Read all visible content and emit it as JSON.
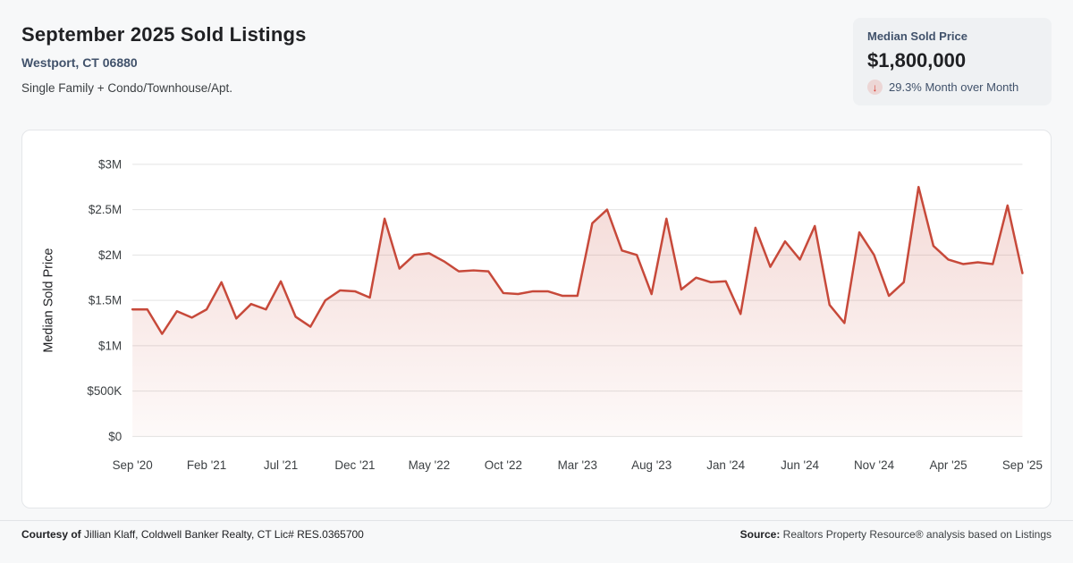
{
  "header": {
    "title": "September 2025 Sold Listings",
    "location": "Westport, CT 06880",
    "subtitle": "Single Family + Condo/Townhouse/Apt."
  },
  "stats": {
    "label": "Median Sold Price",
    "value": "$1,800,000",
    "change_icon": "arrow-down",
    "change_glyph": "↓",
    "change_text": "29.3% Month over Month",
    "change_color": "#d93025"
  },
  "chart_data": {
    "type": "area",
    "title": "September 2025 Sold Listings - Median Sold Price",
    "ylabel": "Median Sold Price",
    "ylim": [
      0,
      3000000
    ],
    "yticks": [
      0,
      500000,
      1000000,
      1500000,
      2000000,
      2500000,
      3000000
    ],
    "ytick_labels": [
      "$0",
      "$500K",
      "$1M",
      "$1.5M",
      "$2M",
      "$2.5M",
      "$3M"
    ],
    "xtick_every": 5,
    "xtick_labels": [
      "Sep '20",
      "Feb '21",
      "Jul '21",
      "Dec '21",
      "May '22",
      "Oct '22",
      "Mar '23",
      "Aug '23",
      "Jan '24",
      "Jun '24",
      "Nov '24",
      "Apr '25",
      "Sep '25"
    ],
    "x": [
      "Sep '20",
      "Oct '20",
      "Nov '20",
      "Dec '20",
      "Jan '21",
      "Feb '21",
      "Mar '21",
      "Apr '21",
      "May '21",
      "Jun '21",
      "Jul '21",
      "Aug '21",
      "Sep '21",
      "Oct '21",
      "Nov '21",
      "Dec '21",
      "Jan '22",
      "Feb '22",
      "Mar '22",
      "Apr '22",
      "May '22",
      "Jun '22",
      "Jul '22",
      "Aug '22",
      "Sep '22",
      "Oct '22",
      "Nov '22",
      "Dec '22",
      "Jan '23",
      "Feb '23",
      "Mar '23",
      "Apr '23",
      "May '23",
      "Jun '23",
      "Jul '23",
      "Aug '23",
      "Sep '23",
      "Oct '23",
      "Nov '23",
      "Dec '23",
      "Jan '24",
      "Feb '24",
      "Mar '24",
      "Apr '24",
      "May '24",
      "Jun '24",
      "Jul '24",
      "Aug '24",
      "Sep '24",
      "Oct '24",
      "Nov '24",
      "Dec '24",
      "Jan '25",
      "Feb '25",
      "Mar '25",
      "Apr '25",
      "May '25",
      "Jun '25",
      "Jul '25",
      "Aug '25",
      "Sep '25"
    ],
    "series": [
      {
        "name": "Median Sold Price",
        "values": [
          1400000,
          1400000,
          1130000,
          1380000,
          1310000,
          1400000,
          1700000,
          1300000,
          1460000,
          1400000,
          1710000,
          1320000,
          1210000,
          1500000,
          1610000,
          1600000,
          1530000,
          2400000,
          1850000,
          2000000,
          2020000,
          1930000,
          1820000,
          1830000,
          1820000,
          1580000,
          1570000,
          1600000,
          1600000,
          1550000,
          1550000,
          2350000,
          2500000,
          2050000,
          2000000,
          1570000,
          2400000,
          1620000,
          1750000,
          1700000,
          1710000,
          1350000,
          2300000,
          1870000,
          2150000,
          1950000,
          2320000,
          1450000,
          1250000,
          2250000,
          2000000,
          1550000,
          1700000,
          2750000,
          2100000,
          1950000,
          1900000,
          1920000,
          1900000,
          2546000,
          1800000
        ]
      }
    ],
    "grid": "horizontal",
    "legend": "none",
    "line_color": "#c7493a",
    "fill_top": "rgba(201,74,58,0.22)",
    "fill_bottom": "rgba(201,74,58,0.03)",
    "grid_color": "#e3e3e3",
    "tick_color": "#3c4043",
    "axis_title_color": "#202124"
  },
  "footer": {
    "courtesy_label": "Courtesy of",
    "courtesy_text": "Jillian Klaff, Coldwell Banker Realty, CT Lic# RES.0365700",
    "source_label": "Source:",
    "source_text": "Realtors Property Resource® analysis based on Listings"
  }
}
